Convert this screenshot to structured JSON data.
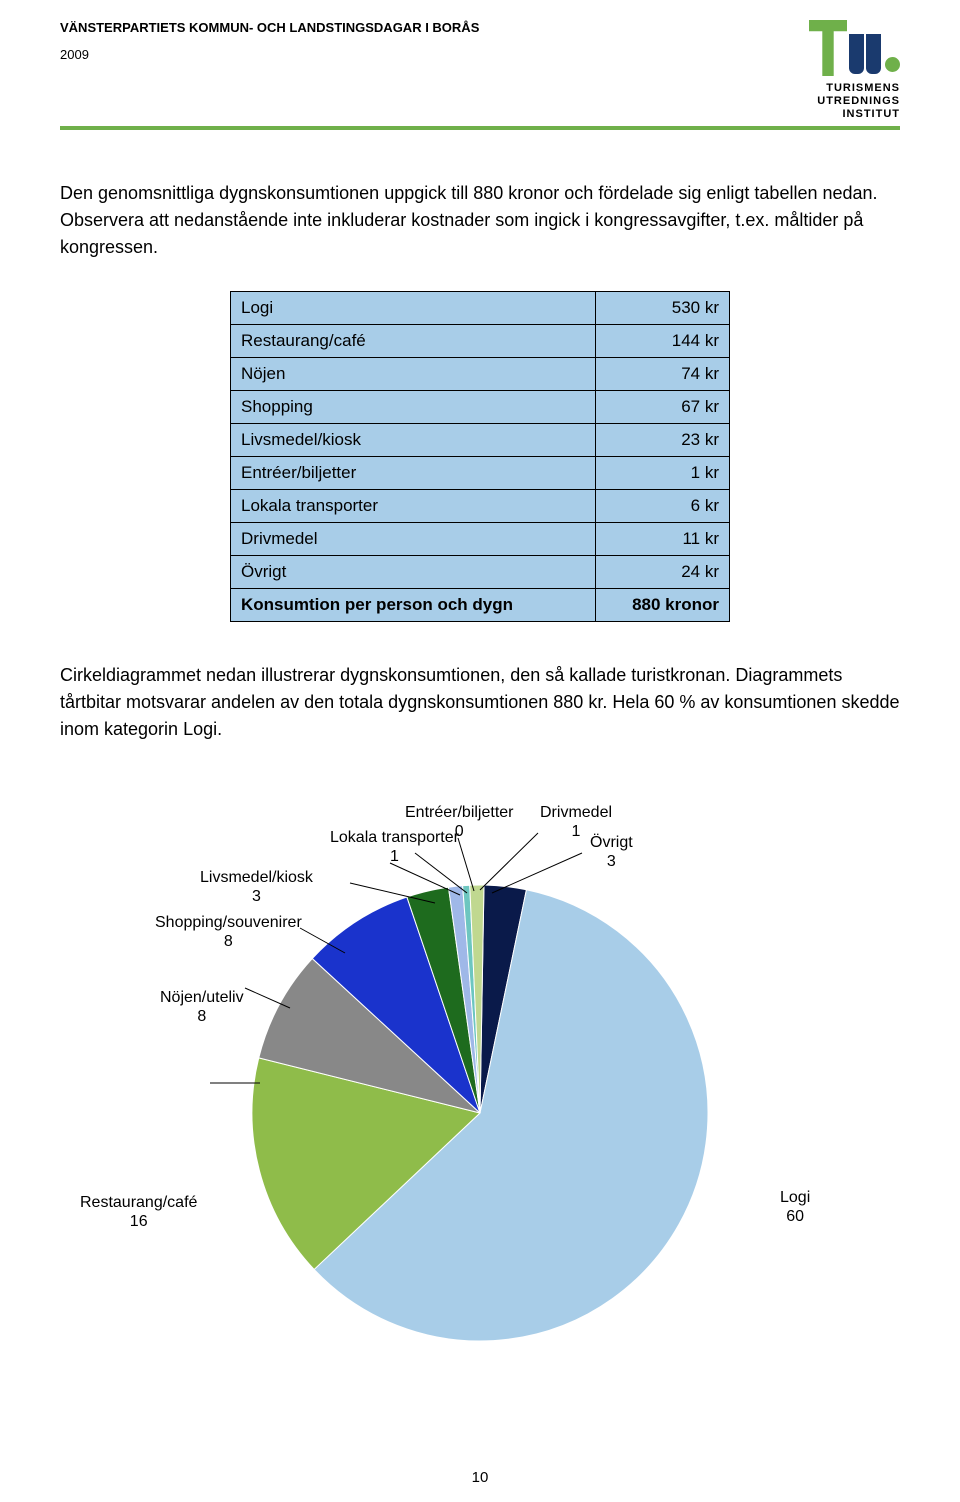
{
  "header": {
    "title": "VÄNSTERPARTIETS KOMMUN- OCH LANDSTINGSDAGAR I BORÅS",
    "year": "2009",
    "border_color": "#6fb04a",
    "logo_line1": "TURISMENS",
    "logo_line2": "UTREDNINGS",
    "logo_line3": "INSTITUT"
  },
  "para1": "Den genomsnittliga dygnskonsumtionen uppgick till 880 kronor och fördelade sig enligt tabellen nedan. Observera att nedanstående inte inkluderar kostnader som ingick i kongressavgifter, t.ex. måltider på kongressen.",
  "para2": "Cirkeldiagrammet nedan illustrerar dygnskonsumtionen, den så kallade turistkronan. Diagrammets tårtbitar motsvarar andelen av den totala dygnskonsumtionen 880 kr. Hela 60 % av konsumtionen skedde inom kategorin Logi.",
  "table": {
    "bg_color": "#a8cde8",
    "rows": [
      {
        "label": "Logi",
        "value": "530 kr"
      },
      {
        "label": "Restaurang/café",
        "value": "144 kr"
      },
      {
        "label": "Nöjen",
        "value": "74 kr"
      },
      {
        "label": "Shopping",
        "value": "67 kr"
      },
      {
        "label": "Livsmedel/kiosk",
        "value": "23 kr"
      },
      {
        "label": "Entréer/biljetter",
        "value": "1 kr"
      },
      {
        "label": "Lokala transporter",
        "value": "6 kr"
      },
      {
        "label": "Drivmedel",
        "value": "11 kr"
      },
      {
        "label": "Övrigt",
        "value": "24 kr"
      }
    ],
    "total": {
      "label": "Konsumtion per person och dygn",
      "value": "880 kronor"
    }
  },
  "pie": {
    "slices": [
      {
        "label": "Logi",
        "sub": "60",
        "value": 60,
        "color": "#a8cde8"
      },
      {
        "label": "Restaurang/café",
        "sub": "16",
        "value": 16,
        "color": "#8fbc4a"
      },
      {
        "label": "Nöjen/uteliv",
        "sub": "8",
        "value": 8,
        "color": "#888888"
      },
      {
        "label": "Shopping/souvenirer",
        "sub": "8",
        "value": 8,
        "color": "#1a33cc"
      },
      {
        "label": "Livsmedel/kiosk",
        "sub": "3",
        "value": 3,
        "color": "#1e6b1e"
      },
      {
        "label": "Lokala transporter",
        "sub": "1",
        "value": 1,
        "color": "#9fb8e8"
      },
      {
        "label": "Entréer/biljetter",
        "sub": "0",
        "value": 0.5,
        "color": "#6dc6c0"
      },
      {
        "label": "Drivmedel",
        "sub": "1",
        "value": 1,
        "color": "#c0d890"
      },
      {
        "label": "Övrigt",
        "sub": "3",
        "value": 3,
        "color": "#0a1a4a"
      }
    ],
    "labels": {
      "logi": {
        "l1": "Logi",
        "l2": "60"
      },
      "rest": {
        "l1": "Restaurang/café",
        "l2": "16"
      },
      "nojen": {
        "l1": "Nöjen/uteliv",
        "l2": "8"
      },
      "shop": {
        "l1": "Shopping/souvenirer",
        "l2": "8"
      },
      "livs": {
        "l1": "Livsmedel/kiosk",
        "l2": "3"
      },
      "lokal": {
        "l1": "Lokala transporter",
        "l2": "1"
      },
      "entre": {
        "l1": "Entréer/biljetter",
        "l2": "0"
      },
      "driv": {
        "l1": "Drivmedel",
        "l2": "1"
      },
      "ovrigt": {
        "l1": "Övrigt",
        "l2": "3"
      }
    }
  },
  "page_number": "10"
}
